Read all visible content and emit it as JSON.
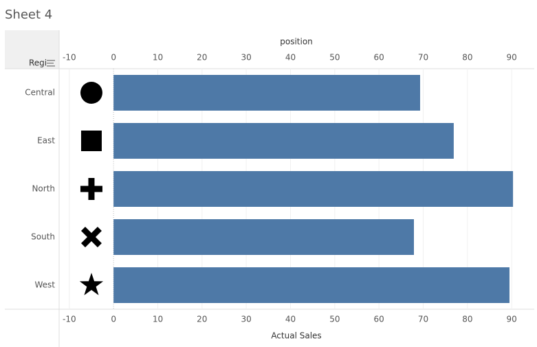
{
  "chart_data": {
    "type": "bar",
    "title": "Sheet 4",
    "row_header": "Regi",
    "categories": [
      "Central",
      "East",
      "North",
      "South",
      "West"
    ],
    "values": [
      69.3,
      76.9,
      90.3,
      67.9,
      89.5
    ],
    "color": "#4e79a7",
    "xlabel": "Actual Sales",
    "xlim": [
      -12.3,
      95.1
    ],
    "xticks": [
      -10,
      0,
      10,
      20,
      30,
      40,
      50,
      60,
      70,
      80,
      90
    ],
    "x2label": "position",
    "x2lim": [
      -12.3,
      95.1
    ],
    "x2ticks": [
      -10,
      0,
      10,
      20,
      30,
      40,
      50,
      60,
      70,
      80,
      90
    ],
    "markers": {
      "values": [
        -5,
        -5,
        -5,
        -5,
        -5
      ],
      "shapes": [
        "circle",
        "square",
        "plus",
        "cross",
        "star"
      ],
      "color": "#000000"
    },
    "grid": true
  }
}
